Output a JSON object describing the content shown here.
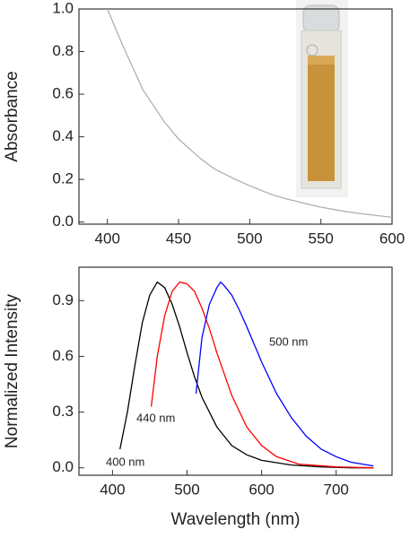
{
  "chart_data": [
    {
      "type": "line",
      "y_label": "Absorbance",
      "xlim": [
        380,
        600
      ],
      "xticks": [
        400,
        450,
        500,
        550,
        600
      ],
      "ylim": [
        -0.01,
        1.0
      ],
      "yticks": [
        {
          "value": 0,
          "label": "0.0"
        },
        {
          "value": 0.2,
          "label": "0.2"
        },
        {
          "value": 0.4,
          "label": "0.4"
        },
        {
          "value": 0.6,
          "label": "0.6"
        },
        {
          "value": 0.8,
          "label": "0.8"
        },
        {
          "value": 1.0,
          "label": "1.0"
        }
      ],
      "series": [
        {
          "color": "#b0b0b0",
          "x": [
            400,
            410,
            425,
            440,
            450,
            465,
            475,
            490,
            500,
            515,
            525,
            540,
            550,
            565,
            575,
            590,
            600
          ],
          "values": [
            1.0,
            0.84,
            0.62,
            0.47,
            0.39,
            0.3,
            0.25,
            0.2,
            0.17,
            0.13,
            0.11,
            0.085,
            0.07,
            0.052,
            0.042,
            0.03,
            0.022
          ]
        }
      ]
    },
    {
      "type": "line",
      "x_label": "Wavelength (nm)",
      "y_label": "Normalized Intensity",
      "xlim": [
        355,
        775
      ],
      "xticks": [
        400,
        500,
        600,
        700
      ],
      "ylim": [
        -0.04,
        1.08
      ],
      "yticks": [
        {
          "value": 0,
          "label": "0.0"
        },
        {
          "value": 0.3,
          "label": "0.3"
        },
        {
          "value": 0.6,
          "label": "0.6"
        },
        {
          "value": 0.9,
          "label": "0.9"
        }
      ],
      "series": [
        {
          "name": "400 nm",
          "color": "#000000",
          "x": [
            410,
            420,
            430,
            440,
            450,
            460,
            470,
            480,
            490,
            500,
            510,
            520,
            540,
            560,
            580,
            600,
            640,
            680,
            720,
            750
          ],
          "values": [
            0.1,
            0.3,
            0.55,
            0.78,
            0.93,
            1.0,
            0.97,
            0.88,
            0.76,
            0.62,
            0.49,
            0.38,
            0.22,
            0.12,
            0.07,
            0.04,
            0.015,
            0.005,
            0.0,
            0.0
          ]
        },
        {
          "name": "440 nm",
          "color": "#ff0000",
          "x": [
            452,
            460,
            470,
            480,
            490,
            500,
            510,
            520,
            530,
            540,
            560,
            580,
            600,
            620,
            650,
            700,
            750
          ],
          "values": [
            0.33,
            0.6,
            0.82,
            0.95,
            1.0,
            0.99,
            0.95,
            0.86,
            0.75,
            0.62,
            0.39,
            0.22,
            0.12,
            0.06,
            0.02,
            0.005,
            0.0
          ]
        },
        {
          "name": "500 nm",
          "color": "#0000ff",
          "x": [
            512,
            520,
            530,
            540,
            545,
            550,
            560,
            570,
            580,
            600,
            620,
            640,
            660,
            680,
            700,
            720,
            750
          ],
          "values": [
            0.4,
            0.7,
            0.88,
            0.97,
            1.0,
            0.98,
            0.93,
            0.85,
            0.76,
            0.57,
            0.4,
            0.27,
            0.17,
            0.1,
            0.06,
            0.03,
            0.01
          ]
        }
      ]
    }
  ]
}
